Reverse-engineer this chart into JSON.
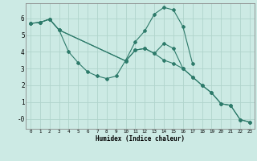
{
  "xlabel": "Humidex (Indice chaleur)",
  "background_color": "#cceae4",
  "grid_color": "#b0d4cc",
  "line_color": "#2d7a6a",
  "xlim": [
    -0.5,
    23.5
  ],
  "ylim": [
    -0.6,
    6.9
  ],
  "xticks": [
    0,
    1,
    2,
    3,
    4,
    5,
    6,
    7,
    8,
    9,
    10,
    11,
    12,
    13,
    14,
    15,
    16,
    17,
    18,
    19,
    20,
    21,
    22,
    23
  ],
  "yticks": [
    0,
    1,
    2,
    3,
    4,
    5,
    6
  ],
  "ytick_labels": [
    "-0",
    "1",
    "2",
    "3",
    "4",
    "5",
    "6"
  ],
  "line1_x": [
    0,
    1,
    2,
    3,
    4,
    5,
    6,
    7,
    8,
    9,
    10,
    11,
    12,
    13,
    14,
    15,
    16,
    17
  ],
  "line1_y": [
    5.7,
    5.75,
    5.95,
    5.3,
    4.0,
    3.35,
    2.8,
    2.55,
    2.4,
    2.55,
    3.5,
    4.6,
    5.25,
    6.25,
    6.65,
    6.5,
    5.5,
    3.3
  ],
  "line2_x": [
    0,
    1,
    2,
    3,
    10,
    11,
    12,
    13,
    14,
    15,
    16,
    17,
    18,
    19,
    20,
    21,
    22,
    23
  ],
  "line2_y": [
    5.7,
    5.75,
    5.95,
    5.3,
    3.45,
    4.1,
    4.2,
    3.9,
    3.5,
    3.3,
    3.0,
    2.5,
    2.0,
    1.55,
    0.9,
    0.8,
    -0.05,
    -0.2
  ],
  "line3_x": [
    0,
    1,
    2,
    3,
    10,
    11,
    12,
    13,
    14,
    15,
    16,
    17,
    18,
    19,
    20,
    21,
    22,
    23
  ],
  "line3_y": [
    5.7,
    5.75,
    5.95,
    5.3,
    3.45,
    4.1,
    4.2,
    3.9,
    4.5,
    4.2,
    3.0,
    2.5,
    2.0,
    1.55,
    0.9,
    0.8,
    -0.05,
    -0.2
  ]
}
